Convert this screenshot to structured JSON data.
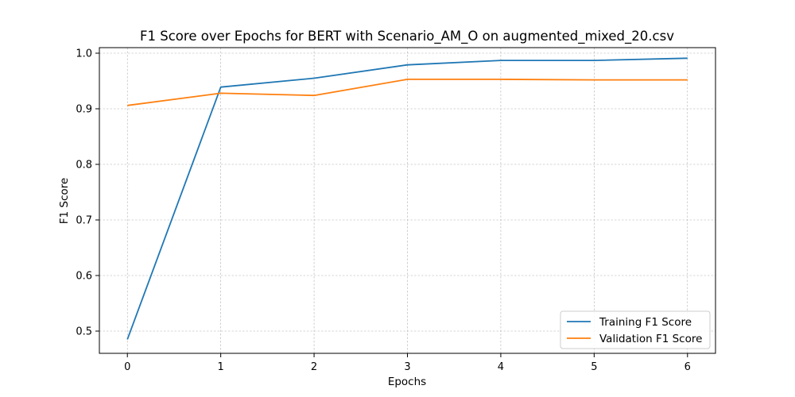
{
  "chart_data": {
    "type": "line",
    "title": "F1 Score over Epochs for BERT with Scenario_AM_O on augmented_mixed_20.csv",
    "xlabel": "Epochs",
    "ylabel": "F1 Score",
    "x": [
      0,
      1,
      2,
      3,
      4,
      5,
      6
    ],
    "xticks": [
      "0",
      "1",
      "2",
      "3",
      "4",
      "5",
      "6"
    ],
    "xlim": [
      -0.3,
      6.3
    ],
    "yticks": [
      "0.5",
      "0.6",
      "0.7",
      "0.8",
      "0.9",
      "1.0"
    ],
    "ytick_values": [
      0.5,
      0.6,
      0.7,
      0.8,
      0.9,
      1.0
    ],
    "ylim": [
      0.46,
      1.01
    ],
    "grid": true,
    "legend_position": "lower-right",
    "series": [
      {
        "name": "Training F1 Score",
        "color": "#1f77b4",
        "values": [
          0.485,
          0.939,
          0.955,
          0.979,
          0.987,
          0.987,
          0.991
        ]
      },
      {
        "name": "Validation F1 Score",
        "color": "#ff7f0e",
        "values": [
          0.906,
          0.928,
          0.924,
          0.953,
          0.953,
          0.952,
          0.952
        ]
      }
    ]
  }
}
